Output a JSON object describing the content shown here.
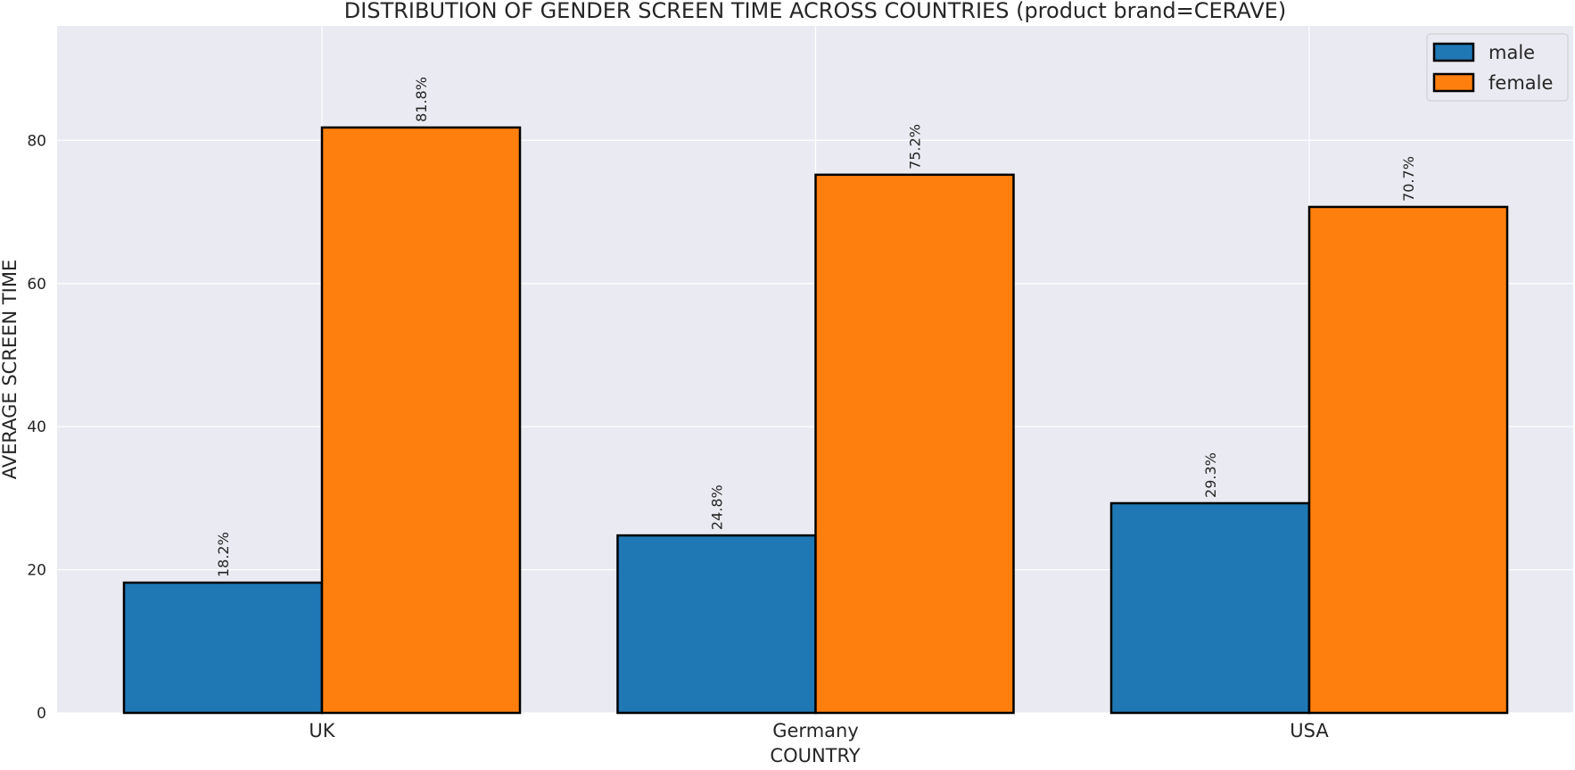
{
  "chart_data": {
    "type": "bar",
    "title": "DISTRIBUTION OF GENDER SCREEN TIME ACROSS COUNTRIES (product brand=CERAVE)",
    "xlabel": "COUNTRY",
    "ylabel": "AVERAGE SCREEN TIME",
    "categories": [
      "UK",
      "Germany",
      "USA"
    ],
    "series": [
      {
        "name": "male",
        "color": "#1f77b4",
        "values": [
          18.2,
          24.8,
          29.3
        ],
        "labels": [
          "18.2%",
          "24.8%",
          "29.3%"
        ]
      },
      {
        "name": "female",
        "color": "#ff7f0e",
        "values": [
          81.8,
          75.2,
          70.7
        ],
        "labels": [
          "81.8%",
          "75.2%",
          "70.7%"
        ]
      }
    ],
    "yticks": [
      0,
      20,
      40,
      60,
      80
    ],
    "ylim": [
      0,
      96
    ],
    "grid": true,
    "legend_position": "top-right",
    "style": {
      "plot_background": "#eaeaf2",
      "grid_color": "#ffffff",
      "bar_edge_color": "#000000"
    }
  }
}
